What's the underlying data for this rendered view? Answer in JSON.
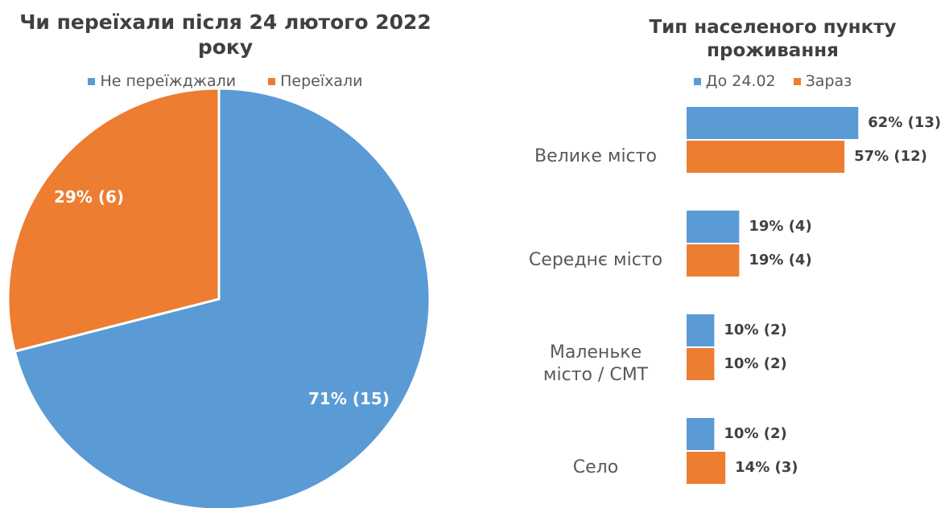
{
  "chart_data": [
    {
      "type": "pie",
      "title": "Чи переїхали після 24 лютого 2022 року",
      "categories": [
        "Не переїжджали",
        "Переїхали"
      ],
      "values": [
        71,
        29
      ],
      "value_labels": [
        "71% (15)",
        "29% (6)"
      ],
      "colors": [
        "#5b9bd5",
        "#ed7d31"
      ],
      "legend": "top"
    },
    {
      "type": "hbar",
      "title": "Тип населеного пункту проживання",
      "categories": [
        "Велике місто",
        "Середнє місто",
        "Маленьке місто / СМТ",
        "Село"
      ],
      "series": [
        {
          "name": "До 24.02",
          "color": "#5b9bd5",
          "values": [
            62,
            19,
            10,
            10
          ],
          "value_labels": [
            "62% (13)",
            "19% (4)",
            "10% (2)",
            "10% (2)"
          ]
        },
        {
          "name": "Зараз",
          "color": "#ed7d31",
          "values": [
            57,
            19,
            10,
            14
          ],
          "value_labels": [
            "57% (12)",
            "19% (4)",
            "10% (2)",
            "14% (3)"
          ]
        }
      ],
      "legend": "top"
    }
  ]
}
